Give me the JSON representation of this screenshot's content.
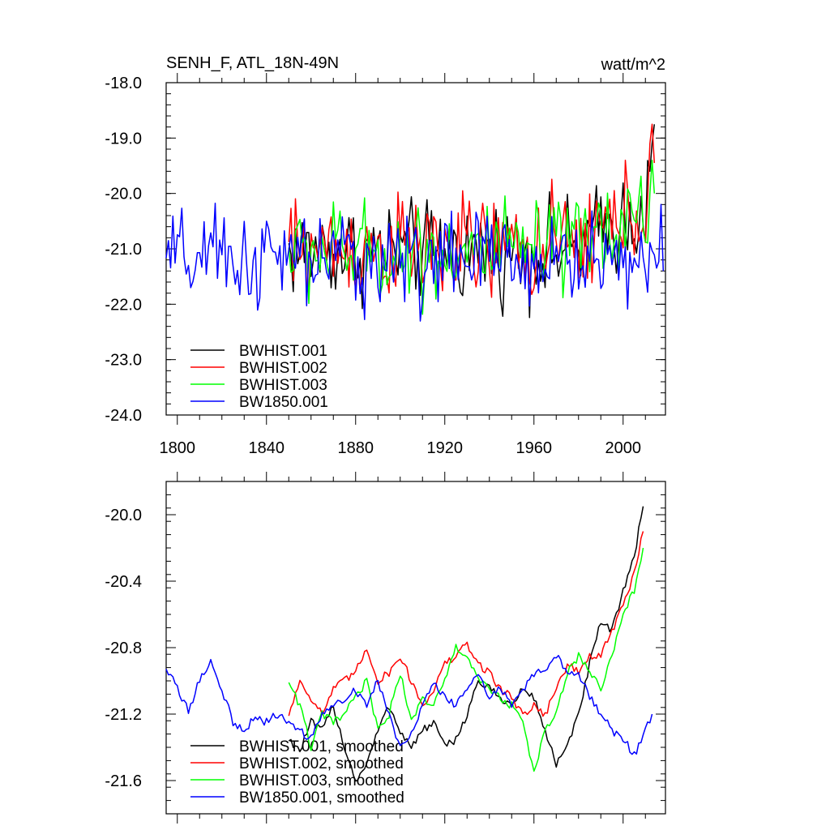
{
  "chart_data": [
    {
      "type": "line",
      "title_left": "SENH_F, ATL_18N-49N",
      "title_right": "watt/m^2",
      "xlabel": "",
      "ylabel": "",
      "xlim": [
        1795,
        2019
      ],
      "ylim": [
        -24.0,
        -18.0
      ],
      "yticks": [
        -24.0,
        -23.0,
        -22.0,
        -21.0,
        -20.0,
        -19.0,
        -18.0
      ],
      "ytick_labels": [
        "-24.0",
        "-23.0",
        "-22.0",
        "-21.0",
        "-20.0",
        "-19.0",
        "-18.0"
      ],
      "xticks": [
        1800,
        1840,
        1880,
        1920,
        1960,
        2000
      ],
      "xtick_labels": [
        "1800",
        "1840",
        "1880",
        "1920",
        "1960",
        "2000"
      ],
      "grid": false,
      "legend_position": "bottom-left",
      "series": [
        {
          "name": "BWHIST.001",
          "color": "#000000",
          "x_start": 1850,
          "x_end": 2014,
          "mean": -21.05,
          "amplitude": 0.55,
          "final_values": [
            -19.6,
            -19.1,
            -18.75
          ]
        },
        {
          "name": "BWHIST.002",
          "color": "#ff0000",
          "x_start": 1850,
          "x_end": 2014,
          "mean": -21.0,
          "amplitude": 0.6,
          "final_values": [
            -19.1,
            -18.75,
            -19.45
          ]
        },
        {
          "name": "BWHIST.003",
          "color": "#00ff00",
          "x_start": 1850,
          "x_end": 2014,
          "mean": -21.05,
          "amplitude": 0.55,
          "final_values": [
            -20.0,
            -19.4,
            -20.0
          ]
        },
        {
          "name": "BW1850.001",
          "color": "#0000ff",
          "x_start": 1795,
          "x_end": 2018,
          "mean": -21.2,
          "amplitude": 0.55,
          "final_values": [
            -20.2,
            -21.4
          ]
        }
      ]
    },
    {
      "type": "line",
      "title_left": "",
      "title_right": "",
      "xlabel": "",
      "ylabel": "",
      "xlim": [
        1795,
        2019
      ],
      "ylim": [
        -21.8,
        -19.8
      ],
      "yticks": [
        -21.6,
        -21.2,
        -20.8,
        -20.4,
        -20.0
      ],
      "ytick_labels": [
        "-21.6",
        "-21.2",
        "-20.8",
        "-20.4",
        "-20.0"
      ],
      "xticks": [
        1800,
        1840,
        1880,
        1920,
        1960,
        2000
      ],
      "grid": false,
      "legend_position": "bottom-left",
      "series": [
        {
          "name": "BWHIST.001, smoothed",
          "color": "#000000",
          "x": [
            1850,
            1855,
            1860,
            1865,
            1870,
            1875,
            1880,
            1885,
            1890,
            1895,
            1900,
            1905,
            1910,
            1915,
            1920,
            1925,
            1930,
            1935,
            1940,
            1945,
            1950,
            1955,
            1960,
            1965,
            1970,
            1975,
            1980,
            1985,
            1990,
            1995,
            2000,
            2005,
            2009
          ],
          "y": [
            -21.35,
            -21.42,
            -21.25,
            -21.3,
            -21.15,
            -21.4,
            -21.6,
            -21.5,
            -21.3,
            -21.15,
            -21.3,
            -21.4,
            -21.3,
            -21.25,
            -21.4,
            -21.35,
            -21.2,
            -21.0,
            -21.05,
            -21.1,
            -21.15,
            -21.05,
            -21.1,
            -21.3,
            -21.5,
            -21.4,
            -21.2,
            -20.9,
            -20.65,
            -20.7,
            -20.45,
            -20.25,
            -19.95
          ]
        },
        {
          "name": "BWHIST.002, smoothed",
          "color": "#ff0000",
          "x": [
            1850,
            1855,
            1860,
            1865,
            1870,
            1875,
            1880,
            1885,
            1890,
            1895,
            1900,
            1905,
            1910,
            1915,
            1920,
            1925,
            1930,
            1935,
            1940,
            1945,
            1950,
            1955,
            1960,
            1965,
            1970,
            1975,
            1980,
            1985,
            1990,
            1995,
            2000,
            2005,
            2009
          ],
          "y": [
            -21.2,
            -21.0,
            -21.1,
            -21.2,
            -21.05,
            -21.0,
            -20.95,
            -20.8,
            -21.0,
            -20.95,
            -20.85,
            -21.0,
            -21.15,
            -21.05,
            -20.9,
            -20.85,
            -20.78,
            -20.9,
            -20.95,
            -21.05,
            -21.1,
            -21.2,
            -21.15,
            -21.2,
            -21.05,
            -20.9,
            -20.95,
            -20.85,
            -20.85,
            -20.7,
            -20.55,
            -20.35,
            -20.1
          ]
        },
        {
          "name": "BWHIST.003, smoothed",
          "color": "#00ff00",
          "x": [
            1850,
            1855,
            1860,
            1865,
            1870,
            1875,
            1880,
            1885,
            1890,
            1895,
            1900,
            1905,
            1910,
            1915,
            1920,
            1925,
            1930,
            1935,
            1940,
            1945,
            1950,
            1955,
            1960,
            1965,
            1970,
            1975,
            1980,
            1985,
            1990,
            1995,
            2000,
            2005,
            2009
          ],
          "y": [
            -21.0,
            -21.15,
            -21.4,
            -21.2,
            -21.25,
            -21.2,
            -21.1,
            -21.0,
            -21.3,
            -21.2,
            -20.95,
            -21.25,
            -21.1,
            -21.15,
            -21.0,
            -20.8,
            -20.85,
            -21.0,
            -21.05,
            -21.1,
            -21.15,
            -21.25,
            -21.55,
            -21.3,
            -21.2,
            -20.95,
            -20.85,
            -20.95,
            -21.05,
            -20.85,
            -20.6,
            -20.45,
            -20.2
          ]
        },
        {
          "name": "BW1850.001, smoothed",
          "color": "#0000ff",
          "x": [
            1795,
            1800,
            1805,
            1810,
            1815,
            1820,
            1825,
            1830,
            1835,
            1840,
            1845,
            1850,
            1855,
            1860,
            1865,
            1870,
            1875,
            1880,
            1885,
            1890,
            1895,
            1900,
            1905,
            1910,
            1915,
            1920,
            1925,
            1930,
            1935,
            1940,
            1945,
            1950,
            1955,
            1960,
            1965,
            1970,
            1975,
            1980,
            1985,
            1990,
            1995,
            2000,
            2005,
            2010,
            2013
          ],
          "y": [
            -20.92,
            -21.05,
            -21.18,
            -21.0,
            -20.88,
            -21.05,
            -21.25,
            -21.3,
            -21.22,
            -21.25,
            -21.2,
            -21.25,
            -21.3,
            -21.35,
            -21.2,
            -21.15,
            -21.1,
            -21.05,
            -21.15,
            -21.0,
            -21.2,
            -21.4,
            -21.3,
            -21.15,
            -21.0,
            -21.1,
            -21.15,
            -21.05,
            -20.95,
            -21.1,
            -21.05,
            -21.15,
            -21.05,
            -20.95,
            -20.95,
            -20.85,
            -20.95,
            -20.95,
            -21.1,
            -21.2,
            -21.3,
            -21.35,
            -21.45,
            -21.3,
            -21.2
          ]
        }
      ]
    }
  ]
}
